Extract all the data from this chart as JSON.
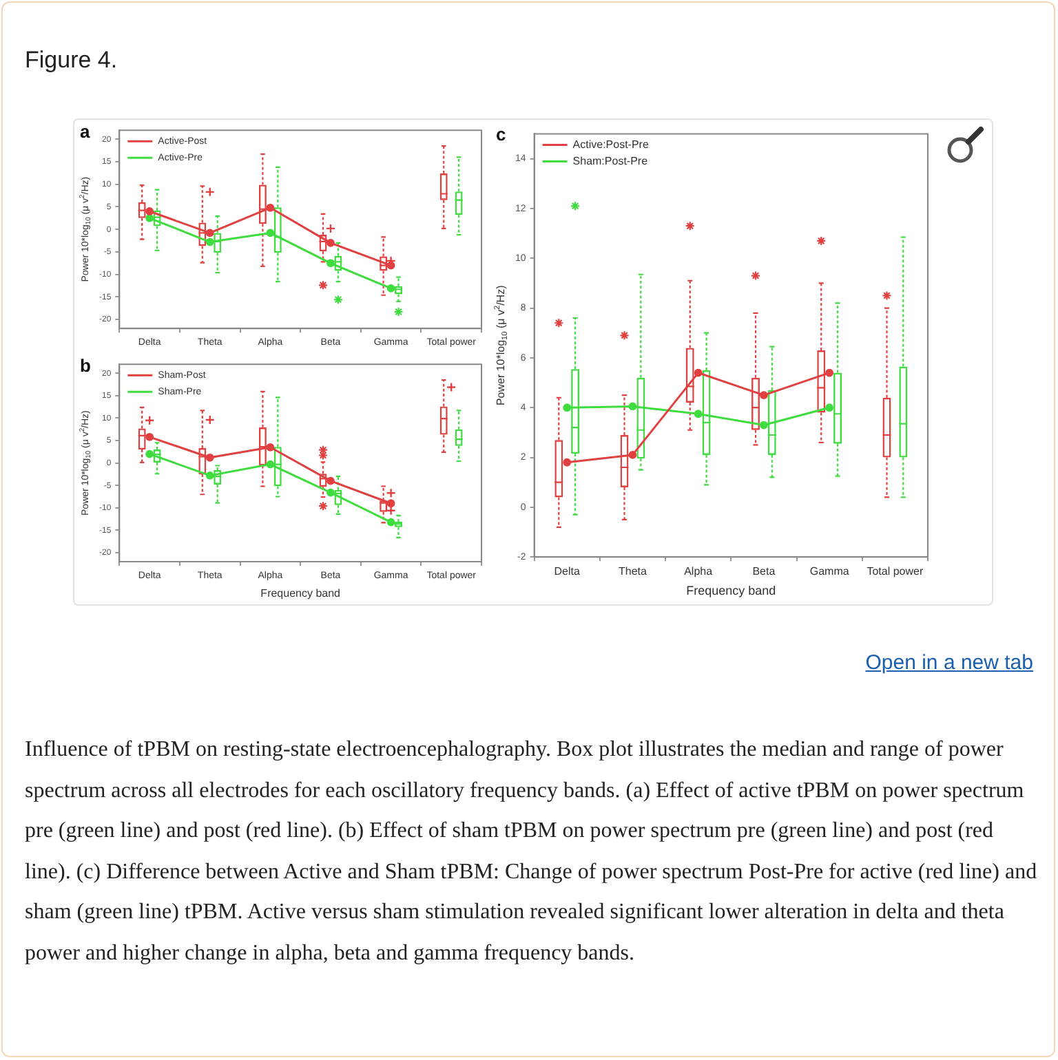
{
  "chart_data": [
    {
      "type": "box",
      "title": "a",
      "ylabel": "Power 10*log$_{10}$ (μ v$^{2}$/Hz)",
      "annotations": [
        "Figure 4."
      ],
      "categories": [
        "Delta",
        "Theta",
        "Alpha",
        "Beta",
        "Gamma",
        "Total power"
      ],
      "ylim": [
        -22,
        22
      ],
      "yticks": [
        -20,
        -15,
        -10,
        -5,
        0,
        5,
        10,
        15,
        20
      ],
      "legend": "top left",
      "marker": "circle",
      "series": [
        {
          "type": "box",
          "color": "#e0403f",
          "boxes": [
            {
              "low": -2.2,
              "q1": 2.5,
              "median": 4.2,
              "q3": 6,
              "high": 9.8
            },
            {
              "low": -7.4,
              "q1": -3.7,
              "median": -0.8,
              "q3": 1.5,
              "high": 9.6
            },
            {
              "low": -8.2,
              "q1": 1.2,
              "median": 4.5,
              "q3": 9.9,
              "high": 16.7
            },
            {
              "low": -7.2,
              "q1": -4.9,
              "median": -2.7,
              "q3": -1.2,
              "high": 3.4,
              "outliers": [
                -12.4
              ]
            },
            {
              "low": -14.6,
              "q1": -9.2,
              "median": -8,
              "q3": -6,
              "high": -1.7
            },
            {
              "low": 0.2,
              "q1": 6.5,
              "median": 7.9,
              "q3": 12.4,
              "high": 18.5
            }
          ]
        },
        {
          "type": "box",
          "color": "#3fdc3f",
          "boxes": [
            {
              "low": -4.7,
              "q1": 0.7,
              "median": 2.7,
              "q3": 4.2,
              "high": 8.8
            },
            {
              "low": -9.6,
              "q1": -5.2,
              "median": -2.7,
              "q3": -0.8,
              "high": 2.9
            },
            {
              "low": -11.6,
              "q1": -5.2,
              "median": -1.7,
              "q3": 4.9,
              "high": 13.8
            },
            {
              "low": -11.6,
              "q1": -9.2,
              "median": -7.2,
              "q3": -5.9,
              "high": -3,
              "outliers": [
                -15.6
              ]
            },
            {
              "low": -16,
              "q1": -14.4,
              "median": -13.3,
              "q3": -12.6,
              "high": -10.6,
              "outliers": [
                -18.3
              ]
            },
            {
              "low": -1.2,
              "q1": 3.2,
              "median": 6.5,
              "q3": 8.4,
              "high": 16
            }
          ]
        },
        {
          "type": "scatter",
          "color": "#e0403f",
          "marker": "cross",
          "x": [
            "Theta",
            "Beta",
            "Gamma"
          ],
          "values": [
            8.3,
            0.2,
            -7
          ]
        },
        {
          "type": "line",
          "name": "Active-Post",
          "color": "#e0403f",
          "values": [
            4,
            -0.8,
            4.8,
            -3,
            -8,
            null
          ]
        },
        {
          "type": "line",
          "name": "Active-Pre",
          "color": "#3fdc3f",
          "values": [
            2.5,
            -2.8,
            -0.8,
            -7.5,
            -13.1,
            null
          ]
        }
      ]
    },
    {
      "type": "box",
      "title": "b",
      "xlabel": "Frequency band",
      "ylabel": "Power 10*log$_{10}$ (μ v$^{2}$/Hz)",
      "categories": [
        "Delta",
        "Theta",
        "Alpha",
        "Beta",
        "Gamma",
        "Total power"
      ],
      "ylim": [
        -22,
        22
      ],
      "yticks": [
        -20,
        -15,
        -10,
        -5,
        0,
        5,
        10,
        15,
        20
      ],
      "legend": "top left",
      "marker": "circle",
      "series": [
        {
          "type": "box",
          "color": "#e0403f",
          "boxes": [
            {
              "low": 0.1,
              "q1": 3,
              "median": 6.1,
              "q3": 7.7,
              "high": 12.4
            },
            {
              "low": -7,
              "q1": -2.5,
              "median": 1.4,
              "q3": 3.3,
              "high": 11.7
            },
            {
              "low": -5.2,
              "q1": -0.6,
              "median": 3.6,
              "q3": 7.9,
              "high": 15.9
            },
            {
              "low": -7.6,
              "q1": -5.3,
              "median": -3.5,
              "q3": -2.4,
              "high": 0.2,
              "outliers": [
                2.9,
                1.7,
                -9.6
              ]
            },
            {
              "low": -13.3,
              "q1": -10.9,
              "median": -8.9,
              "q3": -8.4,
              "high": -5.2
            },
            {
              "low": 2.4,
              "q1": 6.3,
              "median": 9.9,
              "q3": 12.6,
              "high": 18.5
            }
          ]
        },
        {
          "type": "box",
          "color": "#3fdc3f",
          "boxes": [
            {
              "low": -2.4,
              "q1": 0.1,
              "median": 1.9,
              "q3": 3,
              "high": 4.5
            },
            {
              "low": -8.9,
              "q1": -4.8,
              "median": -3,
              "q3": -1.6,
              "high": -0.6
            },
            {
              "low": -7.5,
              "q1": -5.2,
              "median": -0.3,
              "q3": 3.6,
              "high": 14.6
            },
            {
              "low": -11.4,
              "q1": -9.4,
              "median": -6.8,
              "q3": -6,
              "high": -3
            },
            {
              "low": -16.6,
              "q1": -14.3,
              "median": -13.6,
              "q3": -13.1,
              "high": -11.7
            },
            {
              "low": 0.4,
              "q1": 3.8,
              "median": 5.3,
              "q3": 7.5,
              "high": 11.7
            }
          ]
        },
        {
          "type": "scatter",
          "color": "#e0403f",
          "marker": "cross",
          "x": [
            "Delta",
            "Theta",
            "Gamma",
            "Gamma",
            "Total power"
          ],
          "values": [
            9.5,
            9.6,
            -6.7,
            -10.6,
            16.9
          ]
        },
        {
          "type": "line",
          "name": "Sham-Post",
          "color": "#e0403f",
          "values": [
            5.8,
            1.2,
            3.5,
            -4,
            -9,
            null
          ]
        },
        {
          "type": "line",
          "name": "Sham-Pre",
          "color": "#3fdc3f",
          "values": [
            2,
            -2.8,
            -0.3,
            -6.6,
            -13.2,
            null
          ]
        }
      ]
    },
    {
      "type": "box",
      "title": "c",
      "xlabel": "Frequency band",
      "ylabel": "Power 10*log$_{10}$ (μ v$^{2}$/Hz)",
      "annotations": [
        "Open in a new tab",
        "Influence of tPBM on resting-state electroencephalography. Box plot illustrates the median and range of power spectrum across all electrodes for each oscillatory frequency bands. (a) Effect of active tPBM on power spectrum pre (green line) and post (red line). (b) Effect of sham tPBM on power spectrum pre (green line) and post (red line). (c) Difference between Active and Sham tPBM: Change of power spectrum Post-Pre for active (red line) and sham (green line) tPBM. Active versus sham stimulation revealed significant lower alteration in delta and theta power and higher change in alpha, beta and gamma frequency bands."
      ],
      "categories": [
        "Delta",
        "Theta",
        "Alpha",
        "Beta",
        "Gamma",
        "Total power"
      ],
      "ylim": [
        -2,
        15
      ],
      "yticks": [
        -2,
        0,
        2,
        4,
        6,
        8,
        10,
        12,
        14
      ],
      "legend": "top left",
      "marker": "circle",
      "series": [
        {
          "type": "box",
          "color": "#e0403f",
          "boxes": [
            {
              "low": -0.8,
              "q1": 0.4,
              "median": 1,
              "q3": 2.7,
              "high": 4.4,
              "outliers": [
                7.4
              ]
            },
            {
              "low": -0.5,
              "q1": 0.8,
              "median": 1.6,
              "q3": 2.9,
              "high": 4.5,
              "outliers": [
                6.9
              ]
            },
            {
              "low": 3.1,
              "q1": 4.2,
              "median": 4.85,
              "q3": 6.4,
              "high": 9.1,
              "outliers": [
                11.3
              ]
            },
            {
              "low": 2.5,
              "q1": 3.1,
              "median": 4,
              "q3": 5.2,
              "high": 7.8,
              "outliers": [
                9.3
              ]
            },
            {
              "low": 2.6,
              "q1": 3.8,
              "median": 4.8,
              "q3": 6.3,
              "high": 9,
              "outliers": [
                10.7
              ]
            },
            {
              "low": 0.4,
              "q1": 2,
              "median": 2.9,
              "q3": 4.4,
              "high": 8,
              "outliers": [
                8.5
              ]
            }
          ]
        },
        {
          "type": "box",
          "color": "#3fdc3f",
          "boxes": [
            {
              "low": -0.3,
              "q1": 2.15,
              "median": 3.2,
              "q3": 5.55,
              "high": 7.6,
              "outliers": [
                12.1
              ]
            },
            {
              "low": 1.5,
              "q1": 1.95,
              "median": 3.1,
              "q3": 5.2,
              "high": 9.35
            },
            {
              "low": 0.9,
              "q1": 2.1,
              "median": 3.4,
              "q3": 5.5,
              "high": 7
            },
            {
              "low": 1.2,
              "q1": 2.1,
              "median": 2.9,
              "q3": 4.7,
              "high": 6.45
            },
            {
              "low": 1.25,
              "q1": 2.55,
              "median": 3.75,
              "q3": 5.4,
              "high": 8.2
            },
            {
              "low": 0.4,
              "q1": 2,
              "median": 3.35,
              "q3": 5.65,
              "high": 10.85
            }
          ]
        },
        {
          "type": "line",
          "name": "Active:Post-Pre",
          "color": "#e0403f",
          "values": [
            1.8,
            2.1,
            5.4,
            4.5,
            5.4,
            null
          ]
        },
        {
          "type": "line",
          "name": "Sham:Post-Pre",
          "color": "#3fdc3f",
          "values": [
            4,
            4.05,
            3.75,
            3.3,
            4,
            null
          ]
        }
      ]
    }
  ]
}
